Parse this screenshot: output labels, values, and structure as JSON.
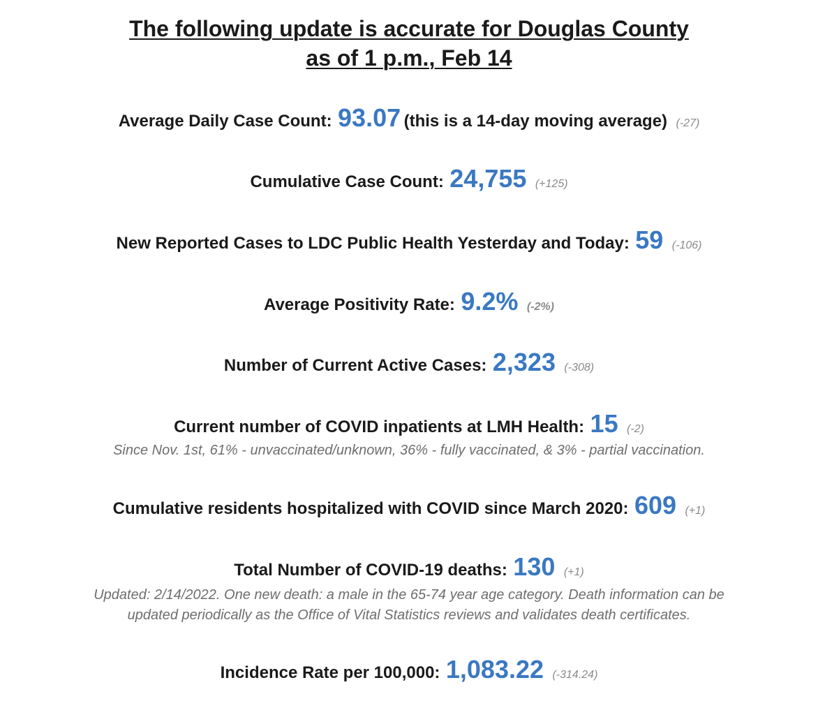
{
  "header": {
    "line1": "The following update is accurate for Douglas County",
    "line2": "as of 1 p.m., Feb 14"
  },
  "stats": {
    "avg_daily": {
      "label": "Average Daily Case Count:",
      "value": "93.07",
      "suffix": "(this is a 14-day moving average)",
      "change": "(-27)"
    },
    "cumulative": {
      "label": "Cumulative Case Count:",
      "value": "24,755",
      "change": "(+125)"
    },
    "new_reported": {
      "label": "New Reported Cases to LDC Public Health Yesterday and Today:",
      "value": "59",
      "change": "(-106)"
    },
    "positivity": {
      "label": "Average Positivity Rate:",
      "value": "9.2%",
      "change": "(-2%)"
    },
    "active": {
      "label": "Number of Current Active Cases:",
      "value": "2,323",
      "change": "(-308)"
    },
    "inpatients": {
      "label": "Current number of COVID inpatients at LMH Health:",
      "value": "15",
      "change": "(-2)",
      "note": "Since Nov. 1st, 61% - unvaccinated/unknown, 36% - fully vaccinated, & 3% - partial vaccination."
    },
    "hospitalized": {
      "label": "Cumulative residents hospitalized with COVID since March 2020:",
      "value": "609",
      "change": "(+1)"
    },
    "deaths": {
      "label": "Total Number of COVID-19 deaths:",
      "value": "130",
      "change": "(+1)",
      "note_line1": "Updated: 2/14/2022. One new death: a male in the 65-74 year age category. Death information can be",
      "note_line2": "updated periodically as the Office of Vital Statistics reviews and validates death certificates."
    },
    "incidence": {
      "label": "Incidence Rate per 100,000:",
      "value": "1,083.22",
      "change": "(-314.24)"
    }
  },
  "colors": {
    "value_blue": "#3a78c2",
    "label_dark": "#1a1a1a",
    "change_gray": "#8a8a8a",
    "note_gray": "#6e6e6e"
  }
}
